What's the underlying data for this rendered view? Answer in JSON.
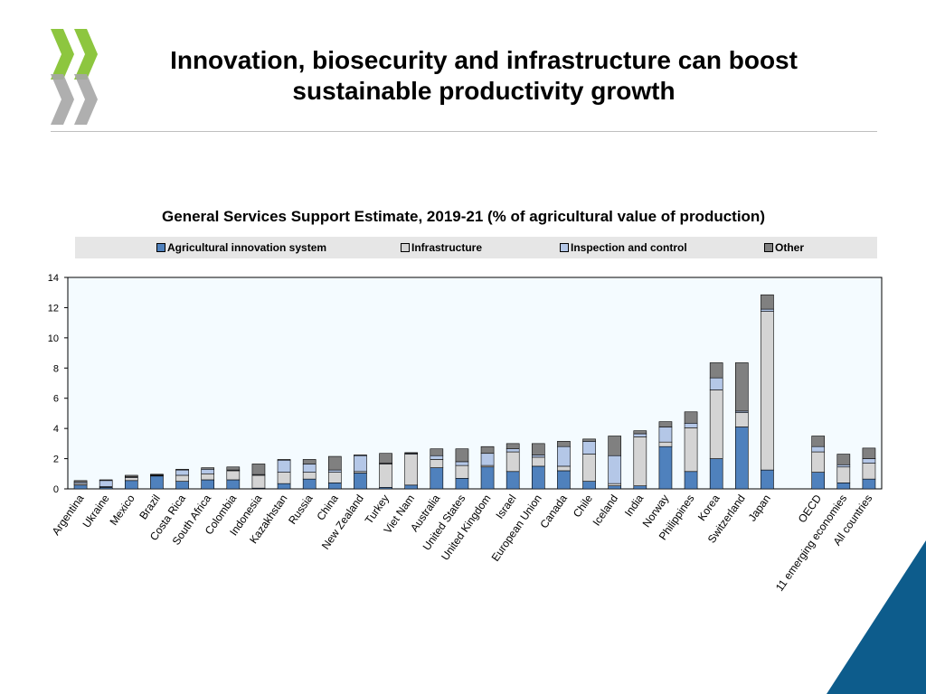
{
  "slide": {
    "title_line1": "Innovation, biosecurity and infrastructure can boost",
    "title_line2": "sustainable productivity growth"
  },
  "colors": {
    "logo_green": "#8dc63f",
    "logo_grey": "#a6a6a6",
    "corner_blue": "#0d5c8c",
    "plot_bg": "#f4fbff"
  },
  "chart_data": {
    "type": "bar",
    "stacked": true,
    "title": "General Services Support Estimate, 2019-21 (% of agricultural value of production)",
    "xlabel": "",
    "ylabel": "",
    "ylim": [
      0,
      14
    ],
    "yticks": [
      0,
      2,
      4,
      6,
      8,
      10,
      12,
      14
    ],
    "grid": false,
    "legend_position": "top",
    "categories": [
      "Argentina",
      "Ukraine",
      "Mexico",
      "Brazil",
      "Costa Rica",
      "South Africa",
      "Colombia",
      "Indonesia",
      "Kazakhstan",
      "Russia",
      "China",
      "New Zealand",
      "Turkey",
      "Viet Nam",
      "Australia",
      "United States",
      "United Kingdom",
      "Israel",
      "European Union",
      "Canada",
      "Chile",
      "Iceland",
      "India",
      "Norway",
      "Philippines",
      "Korea",
      "Switzerland",
      "Japan",
      "",
      "OECD",
      "11 emerging economies",
      "All countries"
    ],
    "series": [
      {
        "name": "Agricultural innovation system",
        "color": "#4f81bd",
        "values": [
          0.25,
          0.1,
          0.55,
          0.85,
          0.5,
          0.6,
          0.6,
          0.05,
          0.35,
          0.65,
          0.4,
          1.05,
          0.1,
          0.25,
          1.4,
          0.7,
          1.45,
          1.15,
          1.5,
          1.2,
          0.5,
          0.2,
          0.2,
          2.8,
          1.15,
          2.0,
          4.1,
          1.25,
          0,
          1.1,
          0.4,
          0.65
        ]
      },
      {
        "name": "Infrastructure",
        "color": "#d4d4d4",
        "values": [
          0.1,
          0.05,
          0.2,
          0.05,
          0.4,
          0.4,
          0.6,
          0.85,
          0.75,
          0.45,
          0.7,
          0.1,
          1.55,
          2.05,
          0.55,
          0.85,
          0.1,
          1.3,
          0.6,
          0.3,
          1.8,
          0.15,
          3.25,
          0.3,
          2.9,
          4.55,
          0.95,
          10.5,
          0,
          1.35,
          1.05,
          1.05
        ]
      },
      {
        "name": "Inspection and control",
        "color": "#b4c7e7",
        "values": [
          0.1,
          0.4,
          0.05,
          0.02,
          0.35,
          0.3,
          0.05,
          0.05,
          0.8,
          0.55,
          0.15,
          1.05,
          0.05,
          0.05,
          0.25,
          0.25,
          0.8,
          0.2,
          0.15,
          1.3,
          0.85,
          1.85,
          0.2,
          1.0,
          0.3,
          0.8,
          0.1,
          0.15,
          0,
          0.35,
          0.15,
          0.3
        ]
      },
      {
        "name": "Other",
        "color": "#808080",
        "values": [
          0.1,
          0.05,
          0.1,
          0.05,
          0.05,
          0.1,
          0.2,
          0.7,
          0.05,
          0.3,
          0.9,
          0.05,
          0.65,
          0.05,
          0.45,
          0.85,
          0.45,
          0.35,
          0.75,
          0.35,
          0.15,
          1.3,
          0.2,
          0.35,
          0.75,
          1.0,
          3.2,
          0.95,
          0,
          0.7,
          0.7,
          0.7
        ]
      }
    ]
  }
}
